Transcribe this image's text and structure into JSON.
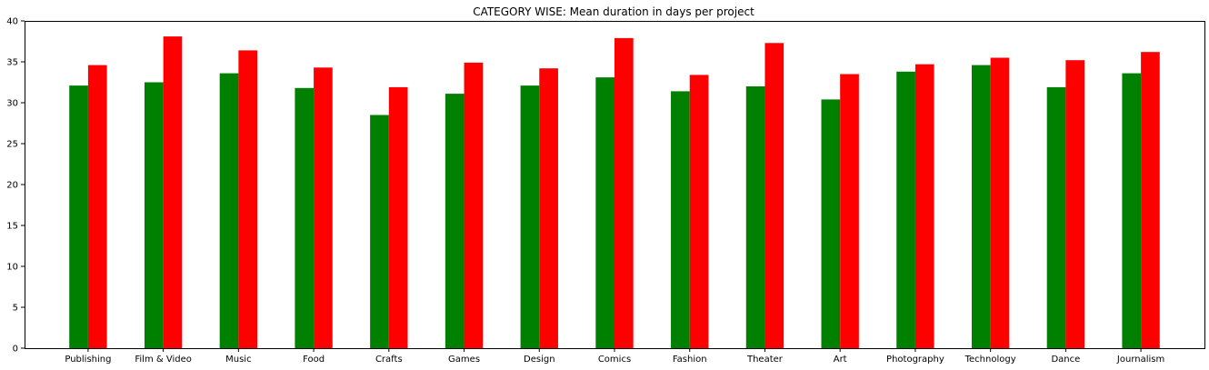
{
  "chart_data": {
    "type": "bar",
    "title": "CATEGORY WISE: Mean duration in days per project",
    "xlabel": "",
    "ylabel": "",
    "categories": [
      "Publishing",
      "Film & Video",
      "Music",
      "Food",
      "Crafts",
      "Games",
      "Design",
      "Comics",
      "Fashion",
      "Theater",
      "Art",
      "Photography",
      "Technology",
      "Dance",
      "Journalism"
    ],
    "series": [
      {
        "color": "#008000",
        "values": [
          32.1,
          32.5,
          33.6,
          31.8,
          28.5,
          31.1,
          32.1,
          33.1,
          31.4,
          32.0,
          30.4,
          33.8,
          34.6,
          31.9,
          33.6
        ]
      },
      {
        "color": "#ff0000",
        "values": [
          34.6,
          38.1,
          36.4,
          34.3,
          31.9,
          34.9,
          34.2,
          37.9,
          33.4,
          37.3,
          33.5,
          34.7,
          35.5,
          35.2,
          36.2
        ]
      }
    ],
    "ylim": [
      0,
      40
    ],
    "yticks": [
      0,
      5,
      10,
      15,
      20,
      25,
      30,
      35,
      40
    ],
    "grid": false,
    "legend": "none"
  }
}
